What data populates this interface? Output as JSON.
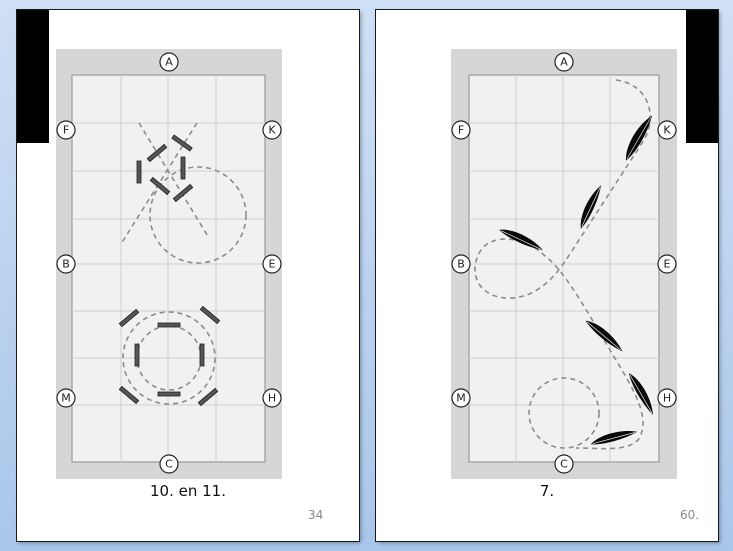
{
  "left_page": {
    "caption": "10. en 11.",
    "page_number": "34",
    "markers": [
      "A",
      "F",
      "K",
      "B",
      "E",
      "M",
      "H",
      "C"
    ]
  },
  "right_page": {
    "caption": "7.",
    "page_number": "60.",
    "markers": [
      "A",
      "F",
      "K",
      "B",
      "E",
      "M",
      "H",
      "C"
    ]
  },
  "colors": {
    "arena_border": "#d6d6d6",
    "arena_floor": "#f1f1f1",
    "grid": "#cfcfcf",
    "dashed_path": "#8c8c8c",
    "page_background": "#a9c6ea"
  },
  "icons": [
    "ground-pole-icon",
    "feather-icon"
  ]
}
